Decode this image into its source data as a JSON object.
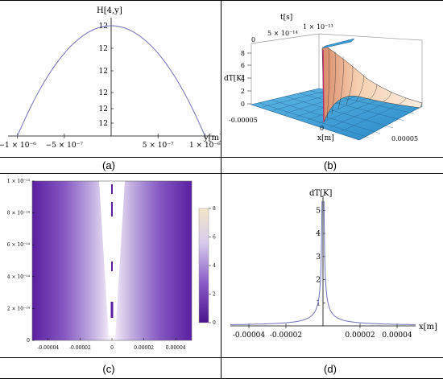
{
  "captions": [
    "(a)",
    "(b)",
    "(c)",
    "(d)"
  ],
  "panel_a": {
    "ylabel": "H[4,y]",
    "xlabel": "y[m]",
    "xticks": [
      {
        "v": -1e-06,
        "label": "−1 × 10⁻⁶"
      },
      {
        "v": -5e-07,
        "label": "−5 × 10⁻⁷"
      },
      {
        "v": 5e-07,
        "label": "5 × 10⁻⁷"
      },
      {
        "v": 1e-06,
        "label": "1 × 10⁻⁶"
      }
    ],
    "yticks": [
      "12",
      "12",
      "12",
      "12",
      "12",
      "12"
    ],
    "line_color": "#7070b8"
  },
  "panel_b": {
    "tlabel": "t[s]",
    "tticks": [
      "0",
      "5 × 10⁻¹⁴",
      "1 × 10⁻¹³"
    ],
    "zlabel": "dT[K]",
    "zticks": [
      "8",
      "6",
      "4",
      "2",
      "0"
    ],
    "xlabel": "x[m]",
    "xticks": [
      "-0.00005",
      "0",
      "0.00005"
    ],
    "surface_color": "#4aa8d8",
    "peak_color": "#f3c8a8"
  },
  "panel_c": {
    "yticks": [
      {
        "v": 0,
        "label": "0"
      },
      {
        "v": 2e-14,
        "label": "2 × 10⁻¹⁴"
      },
      {
        "v": 4e-14,
        "label": "4 × 10⁻¹⁴"
      },
      {
        "v": 6e-14,
        "label": "6 × 10⁻¹⁴"
      },
      {
        "v": 8e-14,
        "label": "8 × 10⁻¹⁴"
      },
      {
        "v": 1e-13,
        "label": "1 × 10⁻¹³"
      }
    ],
    "xticks": [
      {
        "v": -4e-05,
        "label": "-0.00004"
      },
      {
        "v": -2e-05,
        "label": "-0.00002"
      },
      {
        "v": 0,
        "label": "0"
      },
      {
        "v": 2e-05,
        "label": "0.00002"
      },
      {
        "v": 4e-05,
        "label": "0.00004"
      }
    ],
    "colorbar_ticks": [
      {
        "v": 0,
        "label": "0"
      },
      {
        "v": 2,
        "label": "2"
      },
      {
        "v": 4,
        "label": "4"
      },
      {
        "v": 6,
        "label": "6"
      },
      {
        "v": 8,
        "label": "8"
      }
    ],
    "color_low": "#5a1fa0",
    "color_high": "#f3e6c8"
  },
  "chart_data": [
    {
      "type": "line",
      "panel": "a",
      "xlabel": "y[m]",
      "ylabel": "H[4,y]",
      "xlim": [
        -1.1e-06,
        1.1e-06
      ],
      "x": [
        -1e-06,
        -8e-07,
        -6e-07,
        -4e-07,
        -2e-07,
        0,
        2e-07,
        4e-07,
        6e-07,
        8e-07,
        1e-06
      ],
      "y": [
        0,
        0.36,
        0.64,
        0.84,
        0.96,
        1.0,
        0.96,
        0.84,
        0.64,
        0.36,
        0
      ]
    },
    {
      "type": "surface",
      "panel": "b",
      "xlabel": "x[m]",
      "ylabel": "t[s]",
      "zlabel": "dT[K]",
      "xlim": [
        -5e-05,
        5e-05
      ],
      "ylim": [
        0,
        1e-13
      ],
      "zlim": [
        0,
        8
      ]
    },
    {
      "type": "heatmap",
      "panel": "c",
      "xlim": [
        -5e-05,
        5e-05
      ],
      "ylim": [
        0,
        1e-13
      ],
      "colorbar_range": [
        0,
        8
      ]
    },
    {
      "type": "line",
      "panel": "d",
      "xlabel": "x[m]",
      "ylabel": "dT[K]",
      "xlim": [
        -5e-05,
        5e-05
      ],
      "ylim": [
        0,
        5.5
      ],
      "xticks": [
        {
          "v": -4e-05,
          "label": "-0.00004"
        },
        {
          "v": -2e-05,
          "label": "-0.00002"
        },
        {
          "v": 2e-05,
          "label": "0.00002"
        },
        {
          "v": 4e-05,
          "label": "0.00004"
        }
      ],
      "yticks": [
        "1",
        "2",
        "3",
        "4",
        "5"
      ],
      "curve_constant": 2.7e-06,
      "line_color": "#7070b8"
    }
  ]
}
